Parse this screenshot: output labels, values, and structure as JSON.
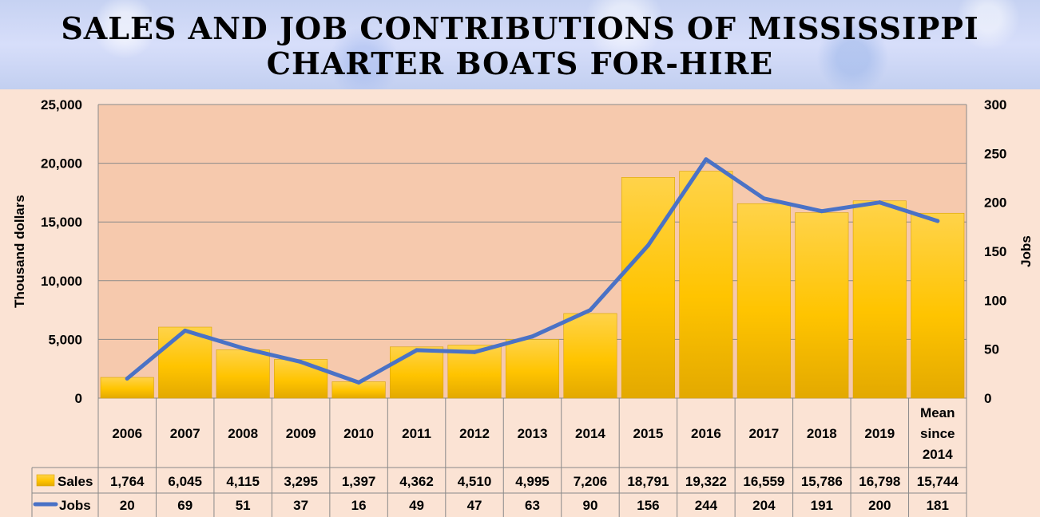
{
  "title": {
    "line1": "SALES AND JOB CONTRIBUTIONS OF MISSISSIPPI",
    "line2": "CHARTER BOATS FOR-HIRE"
  },
  "chart_data": {
    "type": "bar",
    "title": "SALES AND JOB CONTRIBUTIONS OF MISSISSIPPI CHARTER BOATS FOR-HIRE",
    "categories": [
      "2006",
      "2007",
      "2008",
      "2009",
      "2010",
      "2011",
      "2012",
      "2013",
      "2014",
      "2015",
      "2016",
      "2017",
      "2018",
      "2019",
      "Mean since 2014"
    ],
    "category_lines": [
      [
        "2006"
      ],
      [
        "2007"
      ],
      [
        "2008"
      ],
      [
        "2009"
      ],
      [
        "2010"
      ],
      [
        "2011"
      ],
      [
        "2012"
      ],
      [
        "2013"
      ],
      [
        "2014"
      ],
      [
        "2015"
      ],
      [
        "2016"
      ],
      [
        "2017"
      ],
      [
        "2018"
      ],
      [
        "2019"
      ],
      [
        "Mean",
        "since",
        "2014"
      ]
    ],
    "series": [
      {
        "name": "Sales",
        "type": "bar",
        "axis": "left",
        "values": [
          1764,
          6045,
          4115,
          3295,
          1397,
          4362,
          4510,
          4995,
          7206,
          18791,
          19322,
          16559,
          15786,
          16798,
          15744
        ],
        "labels": [
          "1,764",
          "6,045",
          "4,115",
          "3,295",
          "1,397",
          "4,362",
          "4,510",
          "4,995",
          "7,206",
          "18,791",
          "19,322",
          "16,559",
          "15,786",
          "16,798",
          "15,744"
        ]
      },
      {
        "name": "Jobs",
        "type": "line",
        "axis": "right",
        "values": [
          20,
          69,
          51,
          37,
          16,
          49,
          47,
          63,
          90,
          156,
          244,
          204,
          191,
          200,
          181
        ],
        "labels": [
          "20",
          "69",
          "51",
          "37",
          "16",
          "49",
          "47",
          "63",
          "90",
          "156",
          "244",
          "204",
          "191",
          "200",
          "181"
        ]
      }
    ],
    "ylabel": "Thousand dollars",
    "y2label": "Jobs",
    "ylim": [
      0,
      25000
    ],
    "y2lim": [
      0,
      300
    ],
    "yticks": [
      "0",
      "5,000",
      "10,000",
      "15,000",
      "20,000",
      "25,000"
    ],
    "y2ticks": [
      "0",
      "50",
      "100",
      "150",
      "200",
      "250",
      "300"
    ],
    "grid": true,
    "legend": "data-table",
    "colors": {
      "bar_top": "#ffd34a",
      "bar_bottom": "#e8ae00",
      "line": "#4a72c6",
      "plot_bg": "#f6c9ad",
      "page_bg": "#fbe3d4"
    }
  }
}
